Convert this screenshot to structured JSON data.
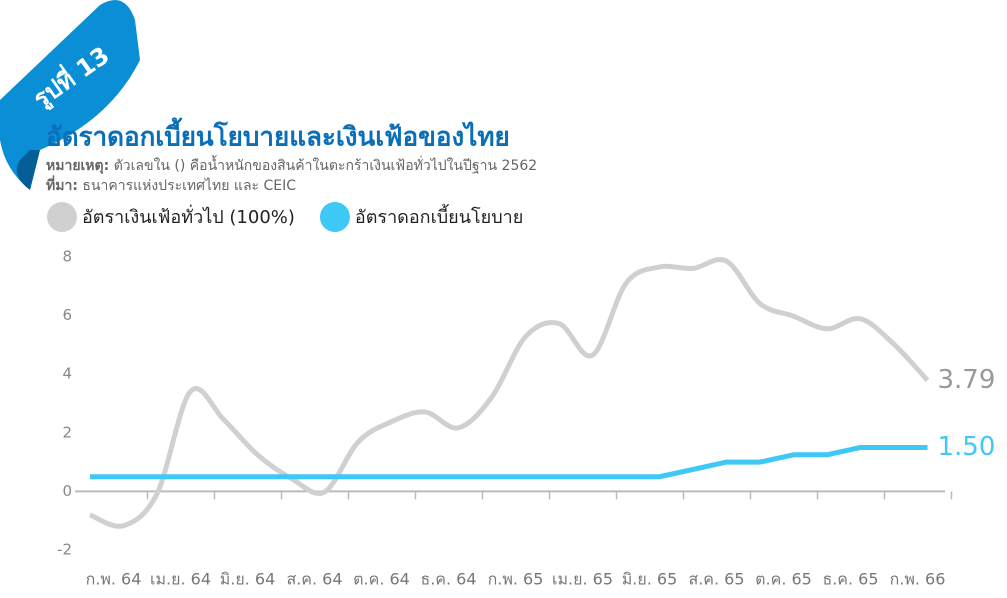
{
  "badge": "รูปที่ 13",
  "chart_data": {
    "type": "line",
    "title": "อัตราดอกเบี้ยนโยบายและเงินเฟ้อของไทย",
    "note": {
      "label": "หมายเหตุ:",
      "text": "ตัวเลขใน () คือน้ำหนักของสินค้าในตะกร้าเงินเฟ้อทั่วไปในปีฐาน 2562"
    },
    "source": {
      "label": "ที่มา:",
      "text": "ธนาคารแห่งประเทศไทย และ CEIC"
    },
    "categories": [
      null,
      "ก.พ. 64",
      null,
      "เม.ย. 64",
      null,
      "มิ.ย. 64",
      null,
      "ส.ค. 64",
      null,
      "ต.ค. 64",
      null,
      "ธ.ค. 64",
      null,
      "ก.พ. 65",
      null,
      "เม.ย. 65",
      null,
      "มิ.ย. 65",
      null,
      "ส.ค. 65",
      null,
      "ต.ค. 65",
      null,
      "ธ.ค. 65",
      null,
      "ก.พ. 66"
    ],
    "series": [
      {
        "name": "อัตราเงินเฟ้อทั่วไป (100%)",
        "color": "#d0d0d0",
        "text_color": "#999999",
        "values": [
          -0.8,
          -1.17,
          -0.08,
          3.41,
          2.44,
          1.25,
          0.45,
          -0.02,
          1.68,
          2.38,
          2.71,
          2.17,
          3.23,
          5.28,
          5.73,
          4.65,
          7.1,
          7.66,
          7.61,
          7.86,
          6.41,
          5.98,
          5.55,
          5.89,
          5.02,
          3.79
        ],
        "value_labels": [
          null,
          null,
          null,
          null,
          null,
          null,
          null,
          null,
          null,
          null,
          null,
          null,
          null,
          null,
          null,
          null,
          null,
          null,
          null,
          null,
          null,
          null,
          null,
          null,
          null,
          "3.79"
        ]
      },
      {
        "name": "อัตราดอกเบี้ยนโยบาย",
        "color": "#3ec8f5",
        "text_color": "#3ec8f5",
        "values": [
          0.5,
          0.5,
          0.5,
          0.5,
          0.5,
          0.5,
          0.5,
          0.5,
          0.5,
          0.5,
          0.5,
          0.5,
          0.5,
          0.5,
          0.5,
          0.5,
          0.5,
          0.5,
          0.75,
          1.0,
          1.0,
          1.25,
          1.25,
          1.5,
          1.5,
          1.5
        ],
        "value_labels": [
          null,
          null,
          null,
          null,
          null,
          null,
          null,
          null,
          null,
          null,
          null,
          null,
          null,
          null,
          null,
          null,
          null,
          null,
          null,
          null,
          null,
          null,
          null,
          null,
          null,
          "1.50"
        ]
      }
    ],
    "ylim": [
      -2,
      8
    ],
    "yticks": [
      -2,
      0,
      2,
      4,
      6,
      8
    ]
  }
}
